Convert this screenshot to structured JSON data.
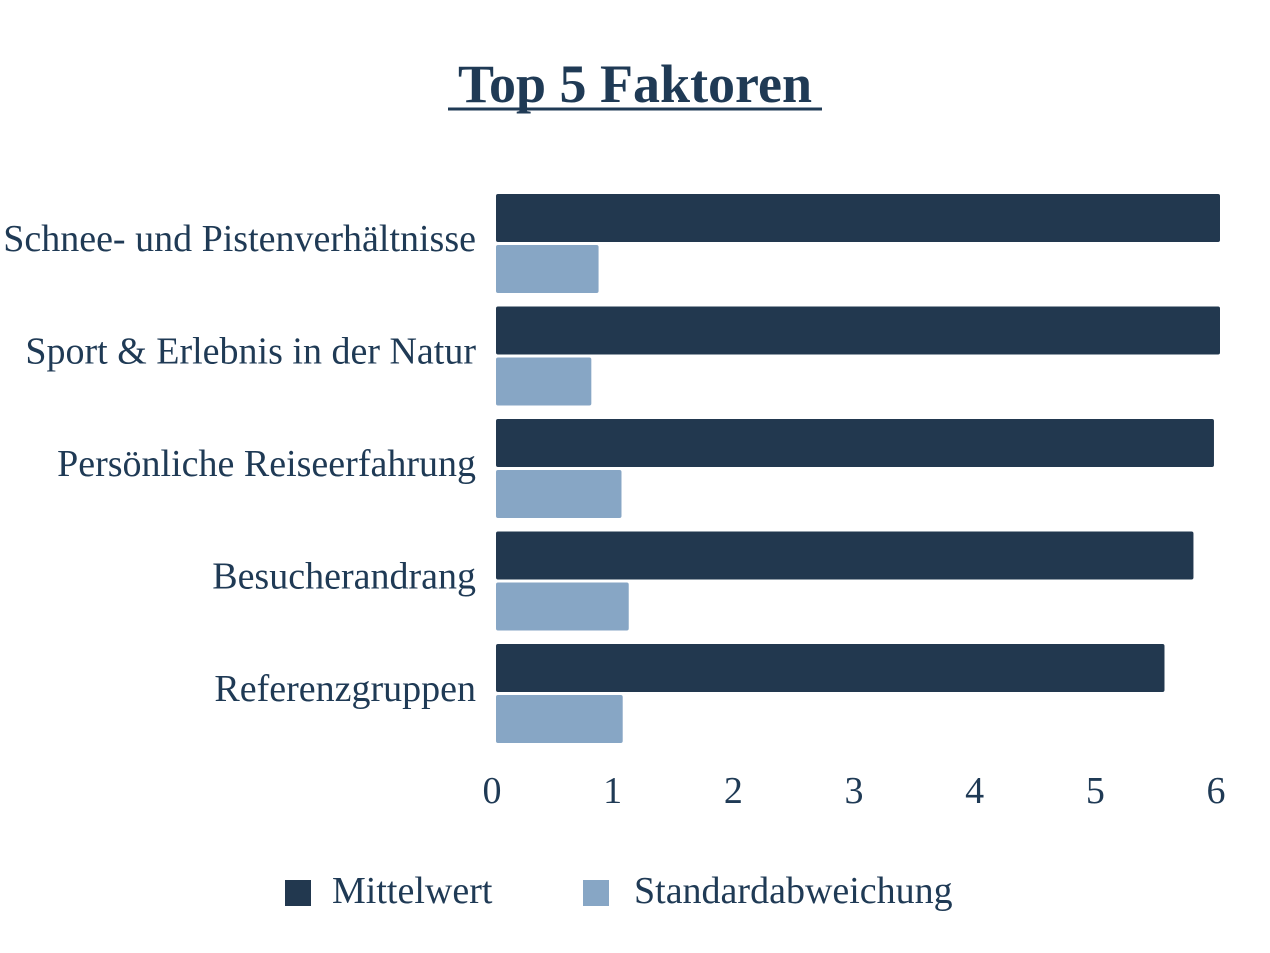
{
  "chart_data": {
    "type": "bar",
    "orientation": "horizontal",
    "title": "Top 5 Faktoren",
    "categories": [
      "Schnee- und Pistenverhältnisse",
      "Sport & Erlebnis in der Natur",
      "Persönliche Reiseerfahrung",
      "Besucherandrang",
      "Referenzgruppen"
    ],
    "series": [
      {
        "name": "Mittelwert",
        "color": "#22384f",
        "values": [
          6.0,
          6.0,
          5.95,
          5.78,
          5.54
        ]
      },
      {
        "name": "Standardabweichung",
        "color": "#87a6c5",
        "values": [
          0.85,
          0.79,
          1.04,
          1.1,
          1.05
        ]
      }
    ],
    "xlim": [
      0,
      6
    ],
    "xticks": [
      "0",
      "1",
      "2",
      "3",
      "4",
      "5",
      "6"
    ],
    "grid": false,
    "legend": "bottom"
  }
}
